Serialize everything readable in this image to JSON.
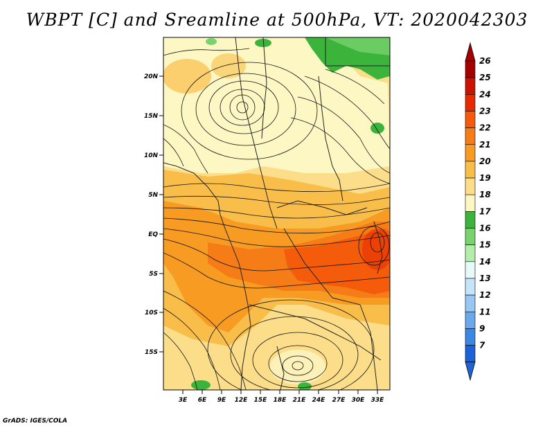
{
  "title": "WBPT [C] and Sreamline at 500hPa, VT: 2020042303",
  "credit": "GrADS: IGES/COLA",
  "map": {
    "lon_ticks": [
      "3E",
      "6E",
      "9E",
      "12E",
      "15E",
      "18E",
      "21E",
      "24E",
      "27E",
      "30E",
      "33E"
    ],
    "lat_ticks": [
      "20N",
      "15N",
      "10N",
      "5N",
      "EQ",
      "5S",
      "10S",
      "15S"
    ]
  },
  "colorbar": {
    "levels": [
      "26",
      "25",
      "24",
      "23",
      "22",
      "21",
      "20",
      "19",
      "18",
      "17",
      "16",
      "15",
      "14",
      "13",
      "12",
      "11",
      "9",
      "7"
    ],
    "colors": [
      "#a50000",
      "#c81400",
      "#e62b00",
      "#f45b0a",
      "#f57c16",
      "#f79b22",
      "#f9be4a",
      "#fbdd8a",
      "#fdf7c4",
      "#3cb43c",
      "#78d26e",
      "#b4ecaa",
      "#e8faf8",
      "#c4e4f9",
      "#98c8f2",
      "#6aa8ec",
      "#3c86e4",
      "#1c62d8"
    ]
  }
}
